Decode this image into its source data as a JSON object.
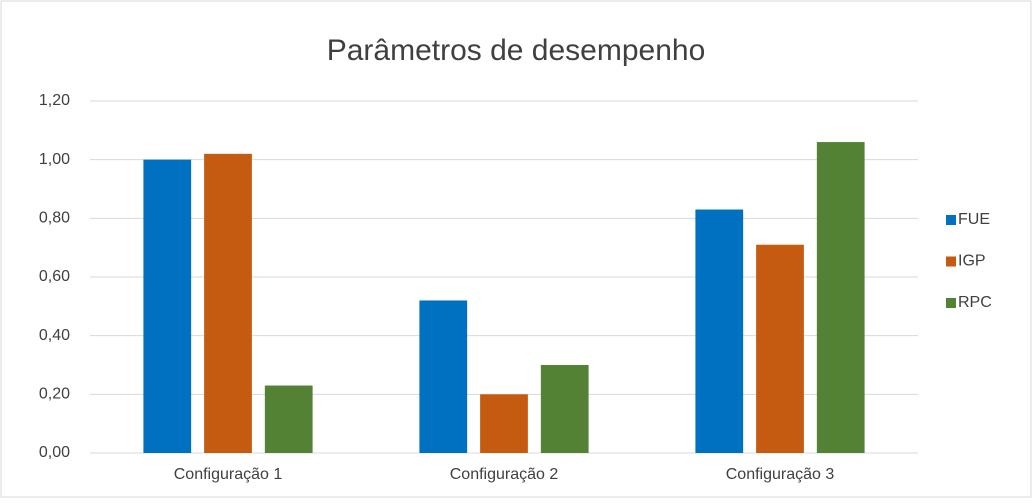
{
  "chart_data": {
    "type": "bar",
    "title": "Parâmetros de desempenho",
    "categories": [
      "Configuração 1",
      "Configuração 2",
      "Configuração 3"
    ],
    "series": [
      {
        "name": "FUE",
        "color": "#0070c0",
        "values": [
          1.0,
          0.52,
          0.83
        ]
      },
      {
        "name": "IGP",
        "color": "#c55a11",
        "values": [
          1.02,
          0.2,
          0.71
        ]
      },
      {
        "name": "RPC",
        "color": "#548235",
        "values": [
          0.23,
          0.3,
          1.06
        ]
      }
    ],
    "ylim": [
      0,
      1.2
    ],
    "yticks": [
      {
        "value": 0,
        "label": "0,00"
      },
      {
        "value": 0.2,
        "label": "0,20"
      },
      {
        "value": 0.4,
        "label": "0,40"
      },
      {
        "value": 0.6,
        "label": "0,60"
      },
      {
        "value": 0.8,
        "label": "0,80"
      },
      {
        "value": 1.0,
        "label": "1,00"
      },
      {
        "value": 1.2,
        "label": "1,20"
      }
    ],
    "grid": true,
    "legend": "right"
  }
}
